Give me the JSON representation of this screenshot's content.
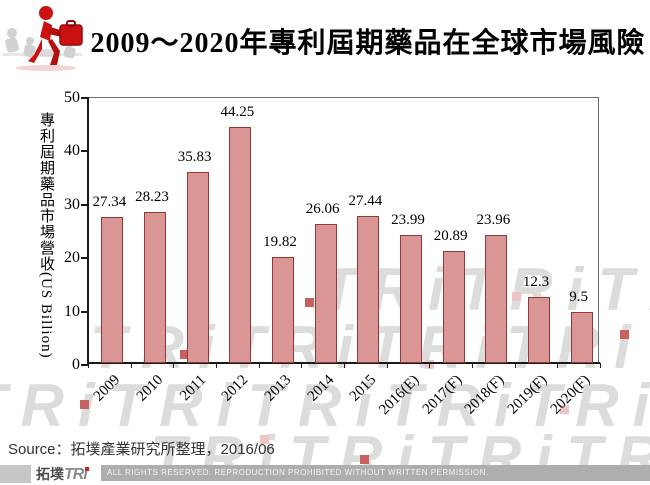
{
  "header": {
    "title": "2009～2020年專利屆期藥品在全球市場風險",
    "icon": "runner-with-briefcase-icon"
  },
  "chart_data": {
    "type": "bar",
    "categories": [
      "2009",
      "2010",
      "2011",
      "2012",
      "2013",
      "2014",
      "2015",
      "2016(E)",
      "2017(F)",
      "2018(F)",
      "2019(F)",
      "2020(F)"
    ],
    "values": [
      27.34,
      28.23,
      35.83,
      44.25,
      19.82,
      26.06,
      27.44,
      23.99,
      20.89,
      23.96,
      12.3,
      9.5
    ],
    "title": "2009～2020年專利屆期藥品在全球市場風險",
    "xlabel": "",
    "ylabel": "專利屆期藥品市場營收(US Billion)",
    "ylim": [
      0,
      50
    ],
    "yticks": [
      0,
      10,
      20,
      30,
      40,
      50
    ],
    "grid": "off",
    "legend": "none",
    "bar_fill": "#D99694",
    "bar_border": "#953735"
  },
  "source": {
    "text": "Source：拓墣產業研究所整理，2016/06"
  },
  "watermark": {
    "text": "TRi"
  },
  "footer": {
    "logo_prefix": "拓墣",
    "logo_mark": "TRi",
    "rights": "ALL RIGHTS RESERVED. REPRODUCTION PROHIBITED WITHOUT WRITTEN PERMISSION."
  },
  "colors": {
    "accent_red": "#cc1111",
    "bar_fill": "#D99694",
    "bar_border": "#953735",
    "footer_bar": "#aeaeae",
    "watermark_gray": "#dcdcdc"
  }
}
